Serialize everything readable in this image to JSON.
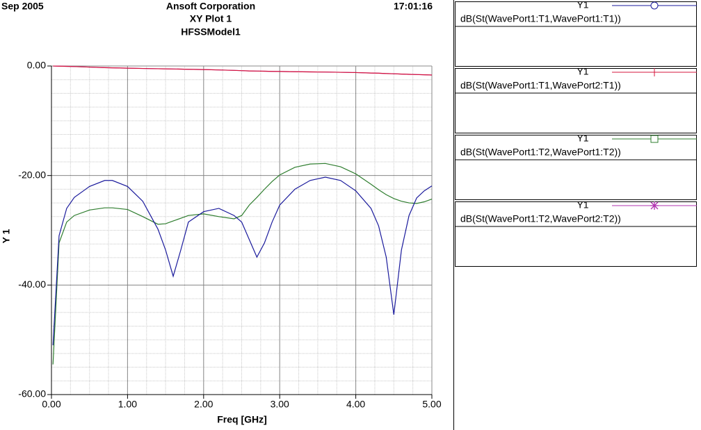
{
  "chart_data": {
    "type": "line",
    "header_left": "Sep 2005",
    "header_right": "17:01:16",
    "title": "Ansoft Corporation",
    "subtitle": "XY Plot 1",
    "model": "HFSSModel1",
    "xlabel": "Freq [GHz]",
    "ylabel": "Y 1",
    "xlim": [
      0,
      5
    ],
    "ylim": [
      -60,
      0
    ],
    "xticks": [
      {
        "value": 0,
        "label": "0.00"
      },
      {
        "value": 1,
        "label": "1.00"
      },
      {
        "value": 2,
        "label": "2.00"
      },
      {
        "value": 3,
        "label": "3.00"
      },
      {
        "value": 4,
        "label": "4.00"
      },
      {
        "value": 5,
        "label": "5.00"
      }
    ],
    "yticks": [
      {
        "value": 0,
        "label": "0.00"
      },
      {
        "value": -20,
        "label": "-20.00"
      },
      {
        "value": -40,
        "label": "-40.00"
      },
      {
        "value": -60,
        "label": "-60.00"
      }
    ],
    "grid": true,
    "x": [
      0.02,
      0.1,
      0.2,
      0.3,
      0.5,
      0.7,
      0.8,
      1.0,
      1.2,
      1.4,
      1.5,
      1.6,
      1.7,
      1.8,
      2.0,
      2.2,
      2.4,
      2.5,
      2.6,
      2.7,
      2.8,
      2.9,
      3.0,
      3.2,
      3.4,
      3.6,
      3.8,
      4.0,
      4.2,
      4.3,
      4.4,
      4.5,
      4.6,
      4.7,
      4.8,
      4.9,
      5.0
    ],
    "series": [
      {
        "name": "dB(St(WavePort1:T1,WavePort1:T1))",
        "trace_axis": "Y1",
        "color": "#1a1a9c",
        "marker": "circle",
        "values": [
          -51,
          -31,
          -26,
          -24,
          -22,
          -20.9,
          -20.9,
          -22,
          -24.7,
          -29.8,
          -33.6,
          -38.4,
          -33.6,
          -28.5,
          -26.6,
          -26.0,
          -27.3,
          -28.5,
          -31.7,
          -34.9,
          -32.3,
          -28.5,
          -25.4,
          -22.5,
          -20.9,
          -20.3,
          -20.9,
          -22.8,
          -26.0,
          -29.2,
          -34.9,
          -45.4,
          -33.6,
          -27.3,
          -24.1,
          -22.8,
          -21.9
        ]
      },
      {
        "name": "dB(St(WavePort1:T1,WavePort2:T1))",
        "trace_axis": "Y1",
        "color": "#d4143c",
        "marker": "tick",
        "values": [
          -0.01,
          -0.03,
          -0.06,
          -0.1,
          -0.2,
          -0.3,
          -0.33,
          -0.4,
          -0.45,
          -0.5,
          -0.52,
          -0.55,
          -0.57,
          -0.6,
          -0.65,
          -0.72,
          -0.8,
          -0.85,
          -0.9,
          -0.93,
          -0.95,
          -0.98,
          -1.0,
          -1.05,
          -1.08,
          -1.1,
          -1.15,
          -1.2,
          -1.28,
          -1.32,
          -1.38,
          -1.42,
          -1.47,
          -1.52,
          -1.56,
          -1.6,
          -1.65
        ]
      },
      {
        "name": "dB(St(WavePort1:T2,WavePort1:T2))",
        "trace_axis": "Y1",
        "color": "#2e7d2e",
        "marker": "square",
        "values": [
          -54.5,
          -32.3,
          -28.5,
          -27.3,
          -26.3,
          -25.9,
          -25.9,
          -26.2,
          -27.5,
          -28.9,
          -28.8,
          -28.3,
          -27.8,
          -27.3,
          -27.0,
          -27.5,
          -27.9,
          -27.3,
          -25.4,
          -24.0,
          -22.5,
          -21.1,
          -19.9,
          -18.5,
          -17.9,
          -17.8,
          -18.4,
          -19.7,
          -21.6,
          -22.6,
          -23.5,
          -24.2,
          -24.7,
          -25.0,
          -25.1,
          -24.8,
          -24.3
        ]
      },
      {
        "name": "dB(St(WavePort1:T2,WavePort2:T2))",
        "trace_axis": "Y1",
        "color": "#b030b0",
        "marker": "star",
        "values": [
          -0.01,
          -0.03,
          -0.06,
          -0.1,
          -0.2,
          -0.3,
          -0.33,
          -0.4,
          -0.45,
          -0.5,
          -0.52,
          -0.55,
          -0.57,
          -0.6,
          -0.65,
          -0.72,
          -0.8,
          -0.85,
          -0.9,
          -0.93,
          -0.95,
          -0.98,
          -1.0,
          -1.05,
          -1.08,
          -1.1,
          -1.15,
          -1.2,
          -1.28,
          -1.32,
          -1.38,
          -1.42,
          -1.47,
          -1.52,
          -1.56,
          -1.6,
          -1.65
        ]
      }
    ]
  }
}
